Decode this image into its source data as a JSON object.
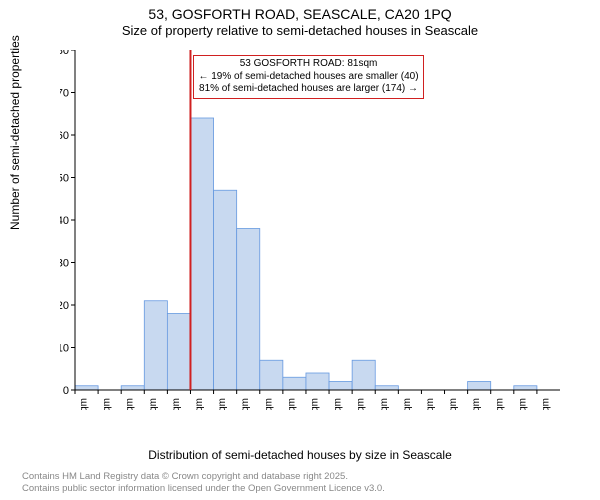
{
  "title": {
    "main": "53, GOSFORTH ROAD, SEASCALE, CA20 1PQ",
    "sub": "Size of property relative to semi-detached houses in Seascale",
    "main_fontsize": 14,
    "sub_fontsize": 13
  },
  "ylabel": "Number of semi-detached properties",
  "xlabel": "Distribution of semi-detached houses by size in Seascale",
  "chart": {
    "type": "histogram",
    "ylim": [
      0,
      80
    ],
    "ytick_step": 10,
    "bar_fill": "#c8d9f0",
    "bar_stroke": "#6699e0",
    "background_color": "#ffffff",
    "bins": [
      {
        "label": "0sqm",
        "value": 1
      },
      {
        "label": "16sqm",
        "value": 0
      },
      {
        "label": "32sqm",
        "value": 1
      },
      {
        "label": "48sqm",
        "value": 21
      },
      {
        "label": "64sqm",
        "value": 18
      },
      {
        "label": "81sqm",
        "value": 64
      },
      {
        "label": "97sqm",
        "value": 47
      },
      {
        "label": "113sqm",
        "value": 38
      },
      {
        "label": "129sqm",
        "value": 7
      },
      {
        "label": "145sqm",
        "value": 3
      },
      {
        "label": "161sqm",
        "value": 4
      },
      {
        "label": "177sqm",
        "value": 2
      },
      {
        "label": "193sqm",
        "value": 7
      },
      {
        "label": "209sqm",
        "value": 1
      },
      {
        "label": "225sqm",
        "value": 0
      },
      {
        "label": "242sqm",
        "value": 0
      },
      {
        "label": "258sqm",
        "value": 0
      },
      {
        "label": "274sqm",
        "value": 2
      },
      {
        "label": "290sqm",
        "value": 0
      },
      {
        "label": "306sqm",
        "value": 1
      },
      {
        "label": "322sqm",
        "value": 0
      }
    ],
    "marker": {
      "bin_index": 5,
      "color": "#d02020",
      "callout": {
        "line1": "53 GOSFORTH ROAD: 81sqm",
        "line2": "← 19% of semi-detached houses are smaller (40)",
        "line3": "81% of semi-detached houses are larger (174) →"
      }
    }
  },
  "footer": {
    "line1": "Contains HM Land Registry data © Crown copyright and database right 2025.",
    "line2": "Contains public sector information licensed under the Open Government Licence v3.0."
  }
}
